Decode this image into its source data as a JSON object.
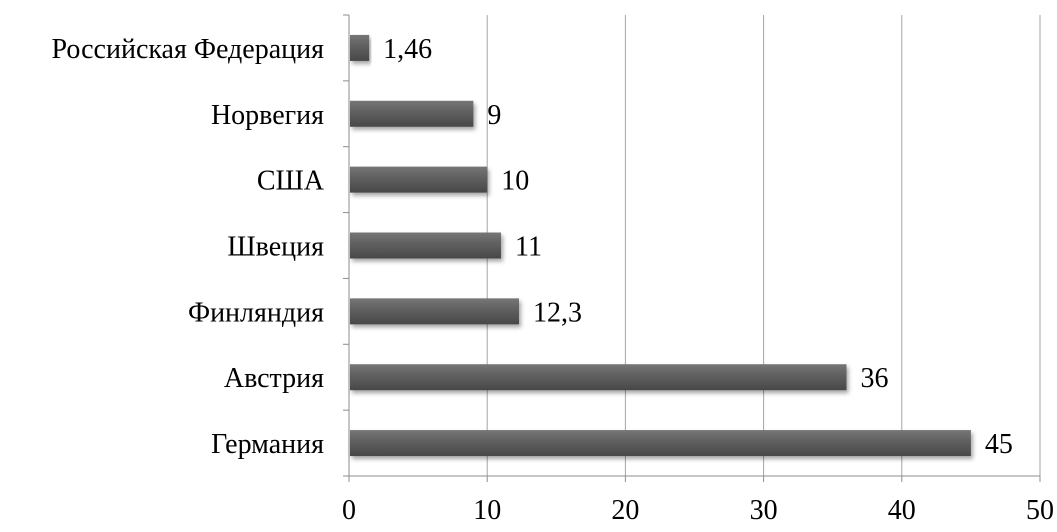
{
  "chart_data": {
    "type": "bar",
    "orientation": "horizontal",
    "categories": [
      "Российская Федерация",
      "Норвегия",
      "США",
      "Швеция",
      "Финляндия",
      "Австрия",
      "Германия"
    ],
    "values": [
      1.46,
      9,
      10,
      11,
      12.3,
      36,
      45
    ],
    "data_labels": [
      "1,46",
      "9",
      "10",
      "11",
      "12,3",
      "36",
      "45"
    ],
    "x_ticks": [
      0,
      10,
      20,
      30,
      40,
      50
    ],
    "xlim": [
      0,
      50
    ],
    "title": "",
    "xlabel": "",
    "ylabel": "",
    "grid": "vertical",
    "legend": "none",
    "colors": {
      "bar": "#5f5f5f",
      "bar_light": "#767676",
      "bar_dark": "#484848",
      "grid": "#a6a6a6",
      "axis": "#8c8c8c"
    }
  }
}
